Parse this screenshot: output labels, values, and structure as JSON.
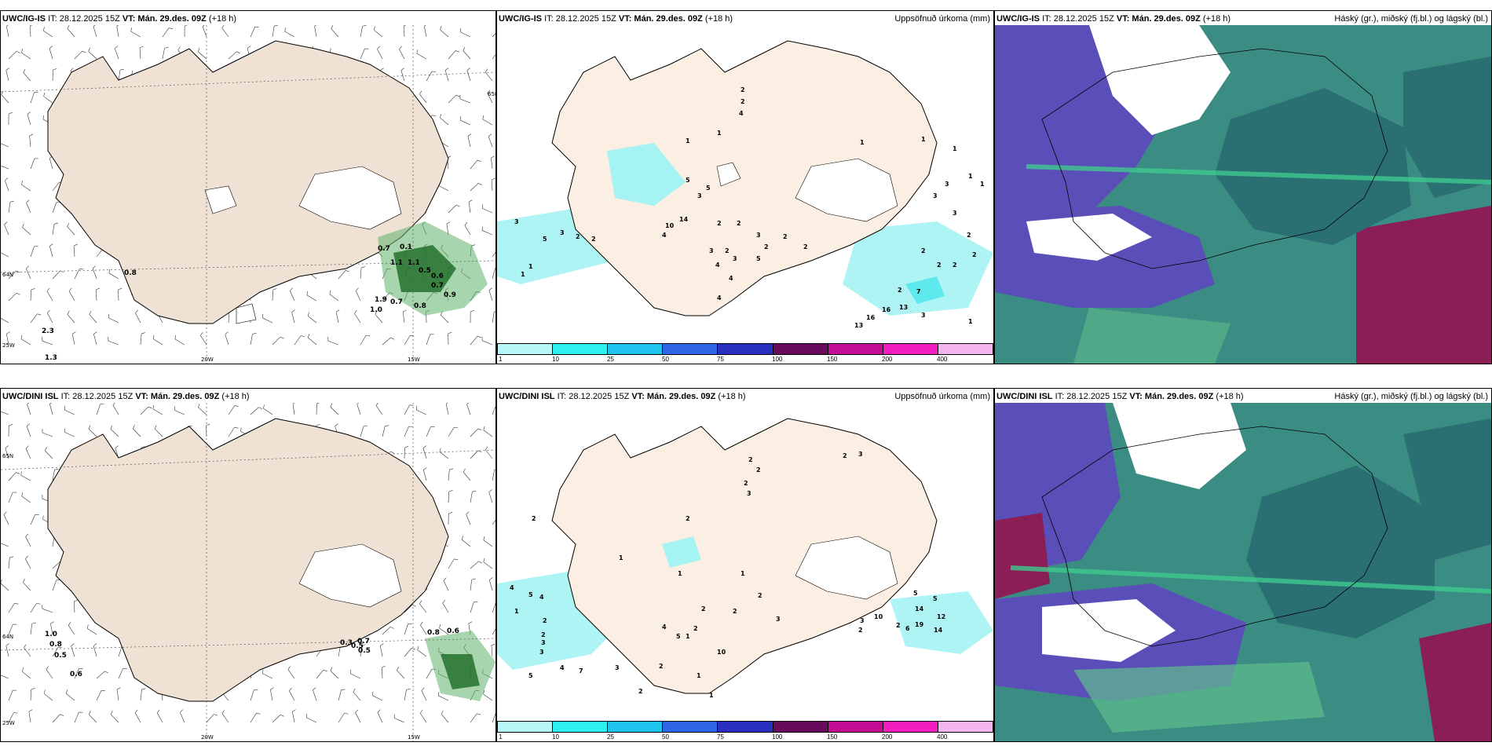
{
  "colors": {
    "land": "#efe1d3",
    "land_rain": "#fbeee2",
    "precip_light": "#a6f3f3",
    "precip_mid": "#5ee9ee",
    "cloud_low": "#5a4fb8",
    "cloud_mid": "#2d7a7a",
    "cloud_high": "#3ec98f",
    "rain_green": "#2e9a3e"
  },
  "panels": [
    {
      "id": "p1",
      "source": "UWC/IG-IS",
      "it_label": "IT: 28.12.2025 15Z",
      "vt_label": "VT:",
      "vt_value": "Mán. 29.des. 09Z",
      "lead": "(+18 h)",
      "title_right": "",
      "axis_labels": [
        "65N",
        "64N",
        "25W",
        "20W",
        "15W"
      ]
    },
    {
      "id": "p2",
      "source": "UWC/IG-IS",
      "it_label": "IT: 28.12.2025 15Z",
      "vt_label": "VT:",
      "vt_value": "Mán. 29.des. 09Z",
      "lead": "(+18 h)",
      "title_right": "Uppsöfnuð úrkoma (mm)",
      "values": [
        "2",
        "2",
        "3",
        "4",
        "1",
        "1",
        "5",
        "3",
        "1",
        "5",
        "3",
        "14",
        "10",
        "2",
        "2",
        "4",
        "1",
        "2",
        "2",
        "3",
        "5",
        "3",
        "2",
        "3",
        "5",
        "2",
        "4",
        "2",
        "2",
        "1",
        "1",
        "4",
        "4",
        "2",
        "2",
        "13",
        "16",
        "16",
        "13",
        "7",
        "3",
        "1",
        "2",
        "2",
        "2",
        "1",
        "1",
        "1",
        "3",
        "3",
        "3",
        "2"
      ]
    },
    {
      "id": "p3",
      "source": "UWC/IG-IS",
      "it_label": "IT: 28.12.2025 15Z",
      "vt_label": "VT:",
      "vt_value": "Mán. 29.des. 09Z",
      "lead": "(+18 h)",
      "title_right": "Háský (gr.), miðský (fj.bl.) og lágský (bl.)"
    },
    {
      "id": "p4",
      "source": "UWC/DINI ISL",
      "it_label": "IT: 28.12.2025 15Z",
      "vt_label": "VT:",
      "vt_value": "Mán. 29.des. 09Z",
      "lead": "(+18 h)",
      "title_right": "",
      "axis_labels": [
        "65N",
        "64N",
        "25W",
        "20W",
        "15W"
      ]
    },
    {
      "id": "p5",
      "source": "UWC/DINI ISL",
      "it_label": "IT: 28.12.2025 15Z",
      "vt_label": "VT:",
      "vt_value": "Mán. 29.des. 09Z",
      "lead": "(+18 h)",
      "title_right": "Uppsöfnuð úrkoma (mm)",
      "values": [
        "2",
        "2",
        "2",
        "3",
        "2",
        "2",
        "2",
        "3",
        "4",
        "5",
        "4",
        "3",
        "1",
        "2",
        "1",
        "1",
        "1",
        "2",
        "2",
        "3",
        "10",
        "14",
        "12",
        "19",
        "14",
        "6",
        "2",
        "5",
        "5",
        "3",
        "4",
        "5",
        "2",
        "3",
        "1",
        "2",
        "2",
        "2",
        "1",
        "4",
        "7",
        "5",
        "3",
        "2",
        "1",
        "10",
        "2"
      ]
    },
    {
      "id": "p6",
      "source": "UWC/DINI ISL",
      "it_label": "IT: 28.12.2025 15Z",
      "vt_label": "VT:",
      "vt_value": "Mán. 29.des. 09Z",
      "lead": "(+18 h)",
      "title_right": "Háský (gr.), miðský (fj.bl.) og lágský (bl.)"
    }
  ],
  "wind_values_top": [
    "0.7",
    "0.1",
    "1.1",
    "1.1",
    "0.5",
    "0.6",
    "0.7",
    "1.9",
    "0.7",
    "0.9",
    "1.0",
    "0.8",
    "0.8",
    "2.3",
    "1.3"
  ],
  "wind_values_bottom": [
    "1.0",
    "0.8",
    "0.5",
    "0.6",
    "0.8",
    "0.6",
    "0.3",
    "0.5",
    "0.7",
    "0.5"
  ],
  "legend": {
    "colors": [
      "#b8f7f7",
      "#2ff0f0",
      "#1ec3ee",
      "#2f66e6",
      "#2a2fbf",
      "#6a0a5c",
      "#c40c94",
      "#f21ec0",
      "#f5b5ef"
    ],
    "ticks": [
      "1",
      "10",
      "25",
      "50",
      "75",
      "100",
      "150",
      "200",
      "400"
    ]
  }
}
